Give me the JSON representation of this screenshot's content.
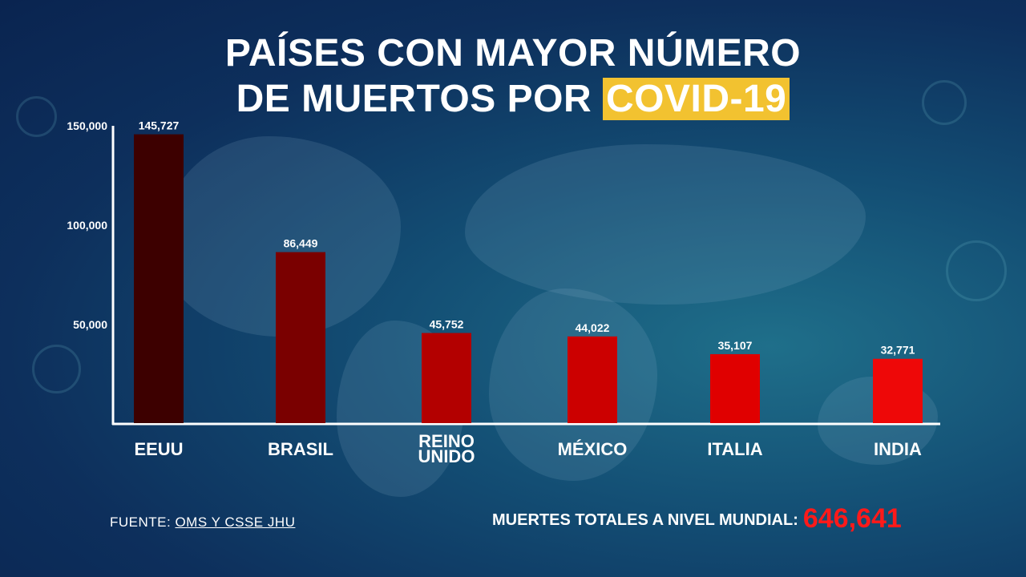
{
  "title": {
    "line1": "PAÍSES CON MAYOR NÚMERO",
    "line2_prefix": "DE MUERTOS POR ",
    "line2_highlight": "COVID-19"
  },
  "source": {
    "label": "FUENTE: ",
    "link_text": "OMS Y CSSE JHU"
  },
  "total": {
    "label": "MUERTES TOTALES A NIVEL MUNDIAL:",
    "value": "646,641"
  },
  "colors": {
    "highlight": "#f2c230",
    "total_value": "#ff1a1a"
  },
  "chart_data": {
    "type": "bar",
    "categories": [
      "EEUU",
      "BRASIL",
      "REINO UNIDO",
      "MÉXICO",
      "ITALIA",
      "INDIA"
    ],
    "values": [
      145727,
      86449,
      45752,
      44022,
      35107,
      32771
    ],
    "value_labels": [
      "145,727",
      "86,449",
      "45,752",
      "44,022",
      "35,107",
      "32,771"
    ],
    "bar_colors": [
      "#3d0000",
      "#7a0000",
      "#b30000",
      "#cc0000",
      "#e00000",
      "#ee0808"
    ],
    "yticks": [
      50000,
      100000,
      150000
    ],
    "ytick_labels": [
      "50,000",
      "100,000",
      "150,000"
    ],
    "ylim": [
      0,
      150000
    ],
    "grid": false,
    "title": "PAÍSES CON MAYOR NÚMERO DE MUERTOS POR COVID-19",
    "xlabel": "",
    "ylabel": ""
  }
}
